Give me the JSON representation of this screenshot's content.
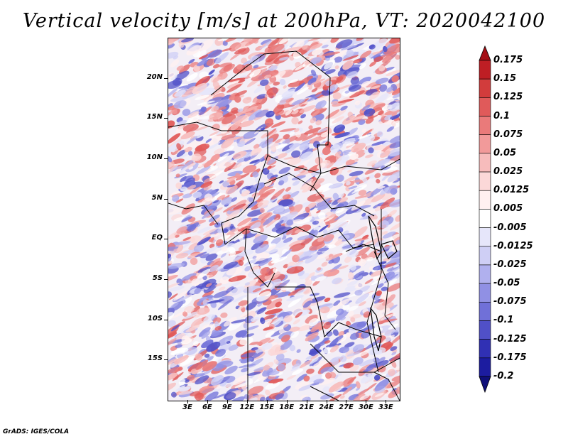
{
  "title": "Vertical velocity [m/s] at 200hPa, VT: 2020042100",
  "footer": "GrADS: IGES/COLA",
  "map": {
    "lon_range": [
      0,
      35
    ],
    "lat_range": [
      -20,
      25
    ],
    "lat_ticks": [
      "20N",
      "15N",
      "10N",
      "5N",
      "EQ",
      "5S",
      "10S",
      "15S"
    ],
    "lon_ticks": [
      "3E",
      "6E",
      "9E",
      "12E",
      "15E",
      "18E",
      "21E",
      "24E",
      "27E",
      "30E",
      "33E"
    ]
  },
  "colorbar": {
    "labels": [
      "0.175",
      "0.15",
      "0.125",
      "0.1",
      "0.075",
      "0.05",
      "0.025",
      "0.0125",
      "0.005",
      "-0.005",
      "-0.0125",
      "-0.025",
      "-0.05",
      "-0.075",
      "-0.1",
      "-0.125",
      "-0.175",
      "-0.2"
    ],
    "colors": [
      "#a50f15",
      "#be1e24",
      "#d23c3c",
      "#e05a5a",
      "#ea7a7a",
      "#f29a9a",
      "#f7bcbc",
      "#fbd8d8",
      "#fff0f0",
      "#ffffff",
      "#e6e6fa",
      "#cfcff5",
      "#b0b0ee",
      "#9090e4",
      "#7070d8",
      "#5050c8",
      "#3030b4",
      "#1c1ca0",
      "#0f0f7a"
    ]
  }
}
